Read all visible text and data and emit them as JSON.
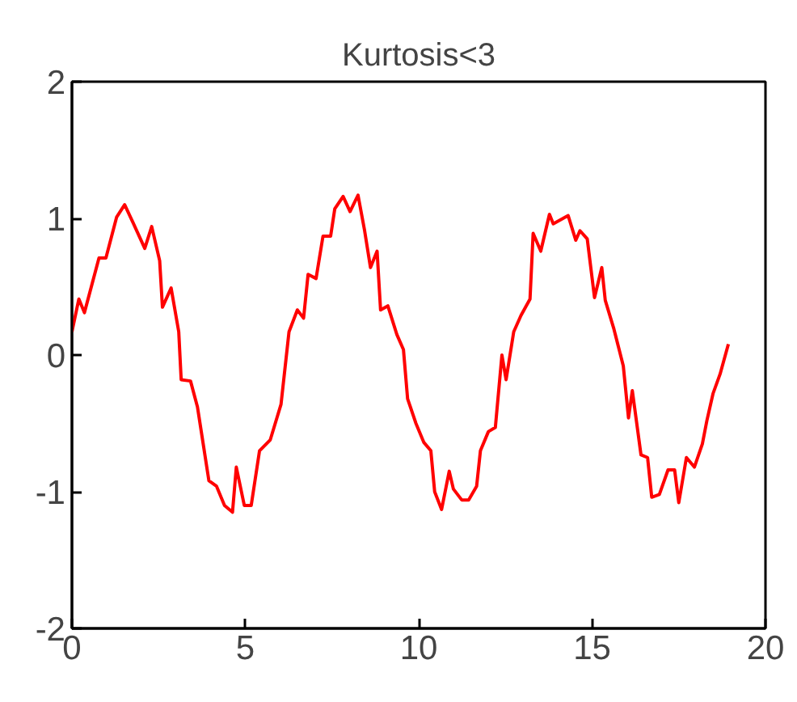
{
  "chart_data": {
    "type": "line",
    "title": "Kurtosis<3",
    "x": [
      0,
      0.2,
      0.36,
      0.78,
      0.98,
      1.29,
      1.52,
      1.76,
      2.1,
      2.3,
      2.53,
      2.61,
      2.86,
      3.08,
      3.15,
      3.42,
      3.62,
      3.95,
      4.17,
      4.4,
      4.63,
      4.74,
      4.97,
      5.17,
      5.41,
      5.72,
      6.03,
      6.26,
      6.5,
      6.68,
      6.81,
      7.04,
      7.24,
      7.46,
      7.58,
      7.82,
      8.02,
      8.25,
      8.44,
      8.61,
      8.8,
      8.9,
      9.11,
      9.37,
      9.56,
      9.68,
      9.92,
      10.15,
      10.35,
      10.46,
      10.66,
      10.88,
      11.0,
      11.24,
      11.44,
      11.67,
      11.78,
      12.01,
      12.21,
      12.4,
      12.52,
      12.74,
      12.95,
      13.21,
      13.3,
      13.52,
      13.77,
      13.88,
      14.31,
      14.53,
      14.65,
      14.86,
      15.07,
      15.28,
      15.38,
      15.63,
      15.9,
      16.05,
      16.16,
      16.41,
      16.6,
      16.72,
      16.94,
      17.19,
      17.38,
      17.5,
      17.72,
      17.95,
      18.18,
      18.31,
      18.49,
      18.69,
      18.93
    ],
    "series": [
      {
        "color": "#ff0000",
        "values": [
          0.17,
          0.41,
          0.31,
          0.71,
          0.71,
          1.01,
          1.1,
          0.97,
          0.78,
          0.94,
          0.69,
          0.35,
          0.49,
          0.17,
          -0.18,
          -0.19,
          -0.38,
          -0.92,
          -0.96,
          -1.1,
          -1.15,
          -0.82,
          -1.1,
          -1.1,
          -0.7,
          -0.62,
          -0.36,
          0.17,
          0.33,
          0.27,
          0.59,
          0.56,
          0.87,
          0.87,
          1.07,
          1.16,
          1.05,
          1.17,
          0.91,
          0.64,
          0.76,
          0.33,
          0.36,
          0.15,
          0.04,
          -0.32,
          -0.5,
          -0.64,
          -0.7,
          -1.0,
          -1.13,
          -0.85,
          -0.98,
          -1.06,
          -1.06,
          -0.96,
          -0.7,
          -0.56,
          -0.53,
          0.0,
          -0.18,
          0.17,
          0.29,
          0.41,
          0.89,
          0.76,
          1.03,
          0.96,
          1.02,
          0.84,
          0.91,
          0.85,
          0.42,
          0.64,
          0.4,
          0.19,
          -0.08,
          -0.46,
          -0.26,
          -0.73,
          -0.75,
          -1.04,
          -1.02,
          -0.84,
          -0.84,
          -1.08,
          -0.75,
          -0.82,
          -0.65,
          -0.48,
          -0.28,
          -0.14,
          0.08
        ]
      }
    ],
    "xlim": [
      0,
      20
    ],
    "ylim": [
      -2,
      2
    ],
    "xticks": [
      0,
      5,
      10,
      15,
      20
    ],
    "yticks": [
      -2,
      -1,
      0,
      1,
      2
    ],
    "grid": false,
    "marker": "none",
    "line_style": "solid"
  }
}
